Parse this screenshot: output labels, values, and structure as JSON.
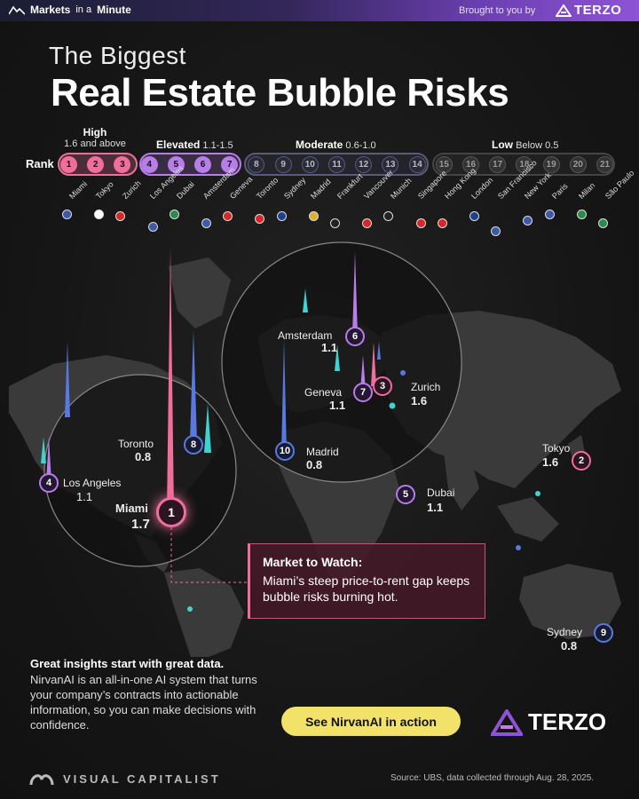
{
  "header": {
    "brand": "Markets",
    "brand_mini": "in a",
    "brand_end": "Minute",
    "sponsor_text": "Brought to you by",
    "sponsor_logo": "TERZO"
  },
  "title": {
    "line1": "The Biggest",
    "line2": "Real Estate Bubble Risks"
  },
  "rank_label": "Rank",
  "tiers": [
    {
      "name": "High",
      "range": "1.6 and above",
      "color": "#f06e9b"
    },
    {
      "name": "Elevated",
      "range": "1.1-1.5",
      "color": "#b77de8"
    },
    {
      "name": "Moderate",
      "range": "0.6-1.0",
      "color": "#5a79e0"
    },
    {
      "name": "Low",
      "range": "Below 0.5",
      "color": "#444444"
    }
  ],
  "ranks": [
    {
      "rank": "1",
      "city": "Miami",
      "tier": 0,
      "flag": "us"
    },
    {
      "rank": "2",
      "city": "Tokyo",
      "tier": 0,
      "flag": "jp"
    },
    {
      "rank": "3",
      "city": "Zurich",
      "tier": 0,
      "flag": "ch"
    },
    {
      "rank": "4",
      "city": "Los Angeles",
      "tier": 1,
      "flag": "us"
    },
    {
      "rank": "5",
      "city": "Dubai",
      "tier": 1,
      "flag": "ae"
    },
    {
      "rank": "6",
      "city": "Amsterdam",
      "tier": 1,
      "flag": "nl"
    },
    {
      "rank": "7",
      "city": "Geneva",
      "tier": 1,
      "flag": "ch"
    },
    {
      "rank": "8",
      "city": "Toronto",
      "tier": 2,
      "flag": "ca"
    },
    {
      "rank": "9",
      "city": "Sydney",
      "tier": 2,
      "flag": "au"
    },
    {
      "rank": "10",
      "city": "Madrid",
      "tier": 2,
      "flag": "es"
    },
    {
      "rank": "11",
      "city": "Frankfurt",
      "tier": 2,
      "flag": "de"
    },
    {
      "rank": "12",
      "city": "Vancouver",
      "tier": 2,
      "flag": "ca"
    },
    {
      "rank": "13",
      "city": "Munich",
      "tier": 2,
      "flag": "de"
    },
    {
      "rank": "14",
      "city": "Singapore",
      "tier": 2,
      "flag": "sg"
    },
    {
      "rank": "15",
      "city": "Hong Kong",
      "tier": 3,
      "flag": "hk"
    },
    {
      "rank": "16",
      "city": "London",
      "tier": 3,
      "flag": "gb"
    },
    {
      "rank": "17",
      "city": "San Francisco",
      "tier": 3,
      "flag": "us"
    },
    {
      "rank": "18",
      "city": "New York",
      "tier": 3,
      "flag": "us"
    },
    {
      "rank": "19",
      "city": "Paris",
      "tier": 3,
      "flag": "fr"
    },
    {
      "rank": "20",
      "city": "Milan",
      "tier": 3,
      "flag": "it"
    },
    {
      "rank": "21",
      "city": "São Paulo",
      "tier": 3,
      "flag": "br"
    }
  ],
  "map_markers": {
    "miami": {
      "rank": "1",
      "city": "Miami",
      "score": "1.7"
    },
    "tokyo": {
      "rank": "2",
      "city": "Tokyo",
      "score": "1.6"
    },
    "zurich": {
      "rank": "3",
      "city": "Zurich",
      "score": "1.6"
    },
    "los_angeles": {
      "rank": "4",
      "city": "Los Angeles",
      "score": "1.1"
    },
    "dubai": {
      "rank": "5",
      "city": "Dubai",
      "score": "1.1"
    },
    "amsterdam": {
      "rank": "6",
      "city": "Amsterdam",
      "score": "1.1"
    },
    "geneva": {
      "rank": "7",
      "city": "Geneva",
      "score": "1.1"
    },
    "toronto": {
      "rank": "8",
      "city": "Toronto",
      "score": "0.8"
    },
    "sydney": {
      "rank": "9",
      "city": "Sydney",
      "score": "0.8"
    },
    "madrid": {
      "rank": "10",
      "city": "Madrid",
      "score": "0.8"
    }
  },
  "market_watch": {
    "heading": "Market to Watch:",
    "body": "Miami’s steep price-to-rent gap keeps bubble risks burning hot."
  },
  "ad": {
    "heading": "Great insights start with great data.",
    "body": "NirvanAI is an all-in-one AI system that turns your company’s contracts into actionable information, so you can make decisions with confidence.",
    "cta": "See NirvanAI in action",
    "logo": "TERZO"
  },
  "footer": {
    "publisher": "VISUAL CAPITALIST",
    "source": "Source: UBS, data collected through Aug. 28, 2025."
  }
}
